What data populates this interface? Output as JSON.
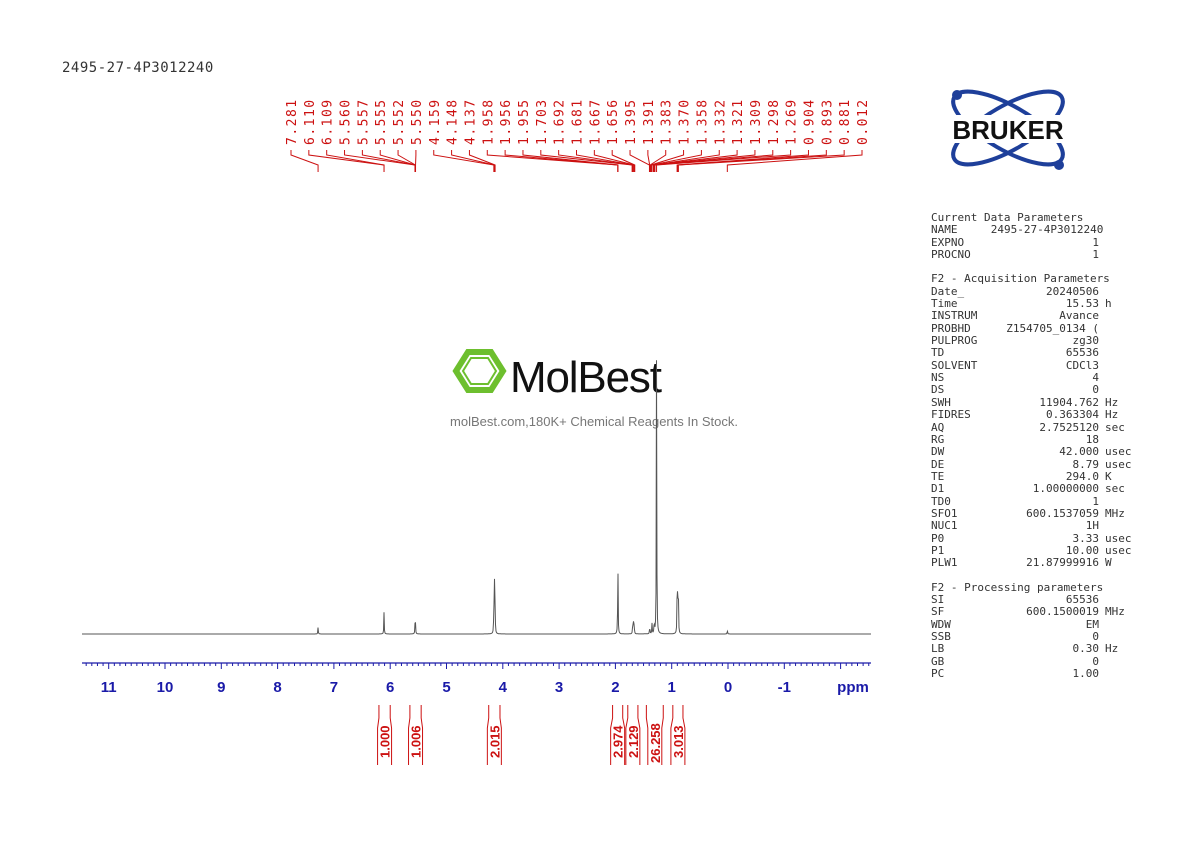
{
  "sample_name": "2495-27-4P3012240",
  "logo": {
    "text": "BRUKER",
    "color": "#1e3f9a"
  },
  "watermark": {
    "brand": "MolBest",
    "tagline": "molBest.com,180K+ Chemical Reagents In Stock.",
    "color": "#6dbf2e"
  },
  "params": {
    "current": {
      "title": "Current Data Parameters",
      "rows": [
        [
          "NAME",
          "2495-27-4P3012240",
          ""
        ],
        [
          "EXPNO",
          "1",
          ""
        ],
        [
          "PROCNO",
          "1",
          ""
        ]
      ]
    },
    "acq": {
      "title": "F2 - Acquisition Parameters",
      "rows": [
        [
          "Date_",
          "20240506",
          ""
        ],
        [
          "Time",
          "15.53",
          "h"
        ],
        [
          "INSTRUM",
          "Avance",
          ""
        ],
        [
          "PROBHD",
          "Z154705_0134 (",
          ""
        ],
        [
          "PULPROG",
          "zg30",
          ""
        ],
        [
          "TD",
          "65536",
          ""
        ],
        [
          "SOLVENT",
          "CDCl3",
          ""
        ],
        [
          "NS",
          "4",
          ""
        ],
        [
          "DS",
          "0",
          ""
        ],
        [
          "SWH",
          "11904.762",
          "Hz"
        ],
        [
          "FIDRES",
          "0.363304",
          "Hz"
        ],
        [
          "AQ",
          "2.7525120",
          "sec"
        ],
        [
          "RG",
          "18",
          ""
        ],
        [
          "DW",
          "42.000",
          "usec"
        ],
        [
          "DE",
          "8.79",
          "usec"
        ],
        [
          "TE",
          "294.0",
          "K"
        ],
        [
          "D1",
          "1.00000000",
          "sec"
        ],
        [
          "TD0",
          "1",
          ""
        ],
        [
          "SFO1",
          "600.1537059",
          "MHz"
        ],
        [
          "NUC1",
          "1H",
          ""
        ],
        [
          "P0",
          "3.33",
          "usec"
        ],
        [
          "P1",
          "10.00",
          "usec"
        ],
        [
          "PLW1",
          "21.87999916",
          "W"
        ]
      ]
    },
    "proc": {
      "title": "F2 - Processing parameters",
      "rows": [
        [
          "SI",
          "65536",
          ""
        ],
        [
          "SF",
          "600.1500019",
          "MHz"
        ],
        [
          "WDW",
          "EM",
          ""
        ],
        [
          "SSB",
          "0",
          ""
        ],
        [
          "LB",
          "0.30",
          "Hz"
        ],
        [
          "GB",
          "0",
          ""
        ],
        [
          "PC",
          "1.00",
          ""
        ]
      ]
    }
  },
  "chart_data": {
    "type": "line",
    "xlabel": "ppm",
    "xlim": [
      11.5,
      -2.5
    ],
    "x_ticks": [
      "11",
      "10",
      "9",
      "8",
      "7",
      "6",
      "5",
      "4",
      "3",
      "2",
      "1",
      "0",
      "-1"
    ],
    "grid": false,
    "line_color": "#555555",
    "axis_color": "#1a1aa8",
    "label_color": "#cc1111",
    "peak_labels": [
      "7.281",
      "6.110",
      "6.109",
      "5.560",
      "5.557",
      "5.555",
      "5.552",
      "5.550",
      "4.159",
      "4.148",
      "4.137",
      "1.958",
      "1.956",
      "1.955",
      "1.703",
      "1.692",
      "1.681",
      "1.667",
      "1.656",
      "1.395",
      "1.391",
      "1.383",
      "1.370",
      "1.358",
      "1.332",
      "1.321",
      "1.309",
      "1.298",
      "1.269",
      "0.904",
      "0.893",
      "0.881",
      "0.012"
    ],
    "peaks": [
      [
        7.281,
        0.025
      ],
      [
        6.11,
        0.075
      ],
      [
        5.555,
        0.085
      ],
      [
        4.159,
        0.1
      ],
      [
        4.148,
        0.17
      ],
      [
        4.137,
        0.1
      ],
      [
        1.956,
        0.27
      ],
      [
        1.692,
        0.04
      ],
      [
        1.681,
        0.05
      ],
      [
        1.667,
        0.04
      ],
      [
        1.39,
        0.03
      ],
      [
        1.35,
        0.035
      ],
      [
        1.31,
        0.05
      ],
      [
        1.269,
        1.0
      ],
      [
        0.904,
        0.12
      ],
      [
        0.893,
        0.22
      ],
      [
        0.881,
        0.12
      ],
      [
        0.012,
        0.015
      ]
    ],
    "integrals": [
      {
        "from": 6.2,
        "to": 6.0,
        "value": "1.000"
      },
      {
        "from": 5.65,
        "to": 5.45,
        "value": "1.006"
      },
      {
        "from": 4.25,
        "to": 4.05,
        "value": "2.015"
      },
      {
        "from": 2.05,
        "to": 1.87,
        "value": "2.974"
      },
      {
        "from": 1.78,
        "to": 1.6,
        "value": "2.129"
      },
      {
        "from": 1.45,
        "to": 1.15,
        "value": "26.258"
      },
      {
        "from": 0.98,
        "to": 0.8,
        "value": "3.013"
      }
    ]
  }
}
